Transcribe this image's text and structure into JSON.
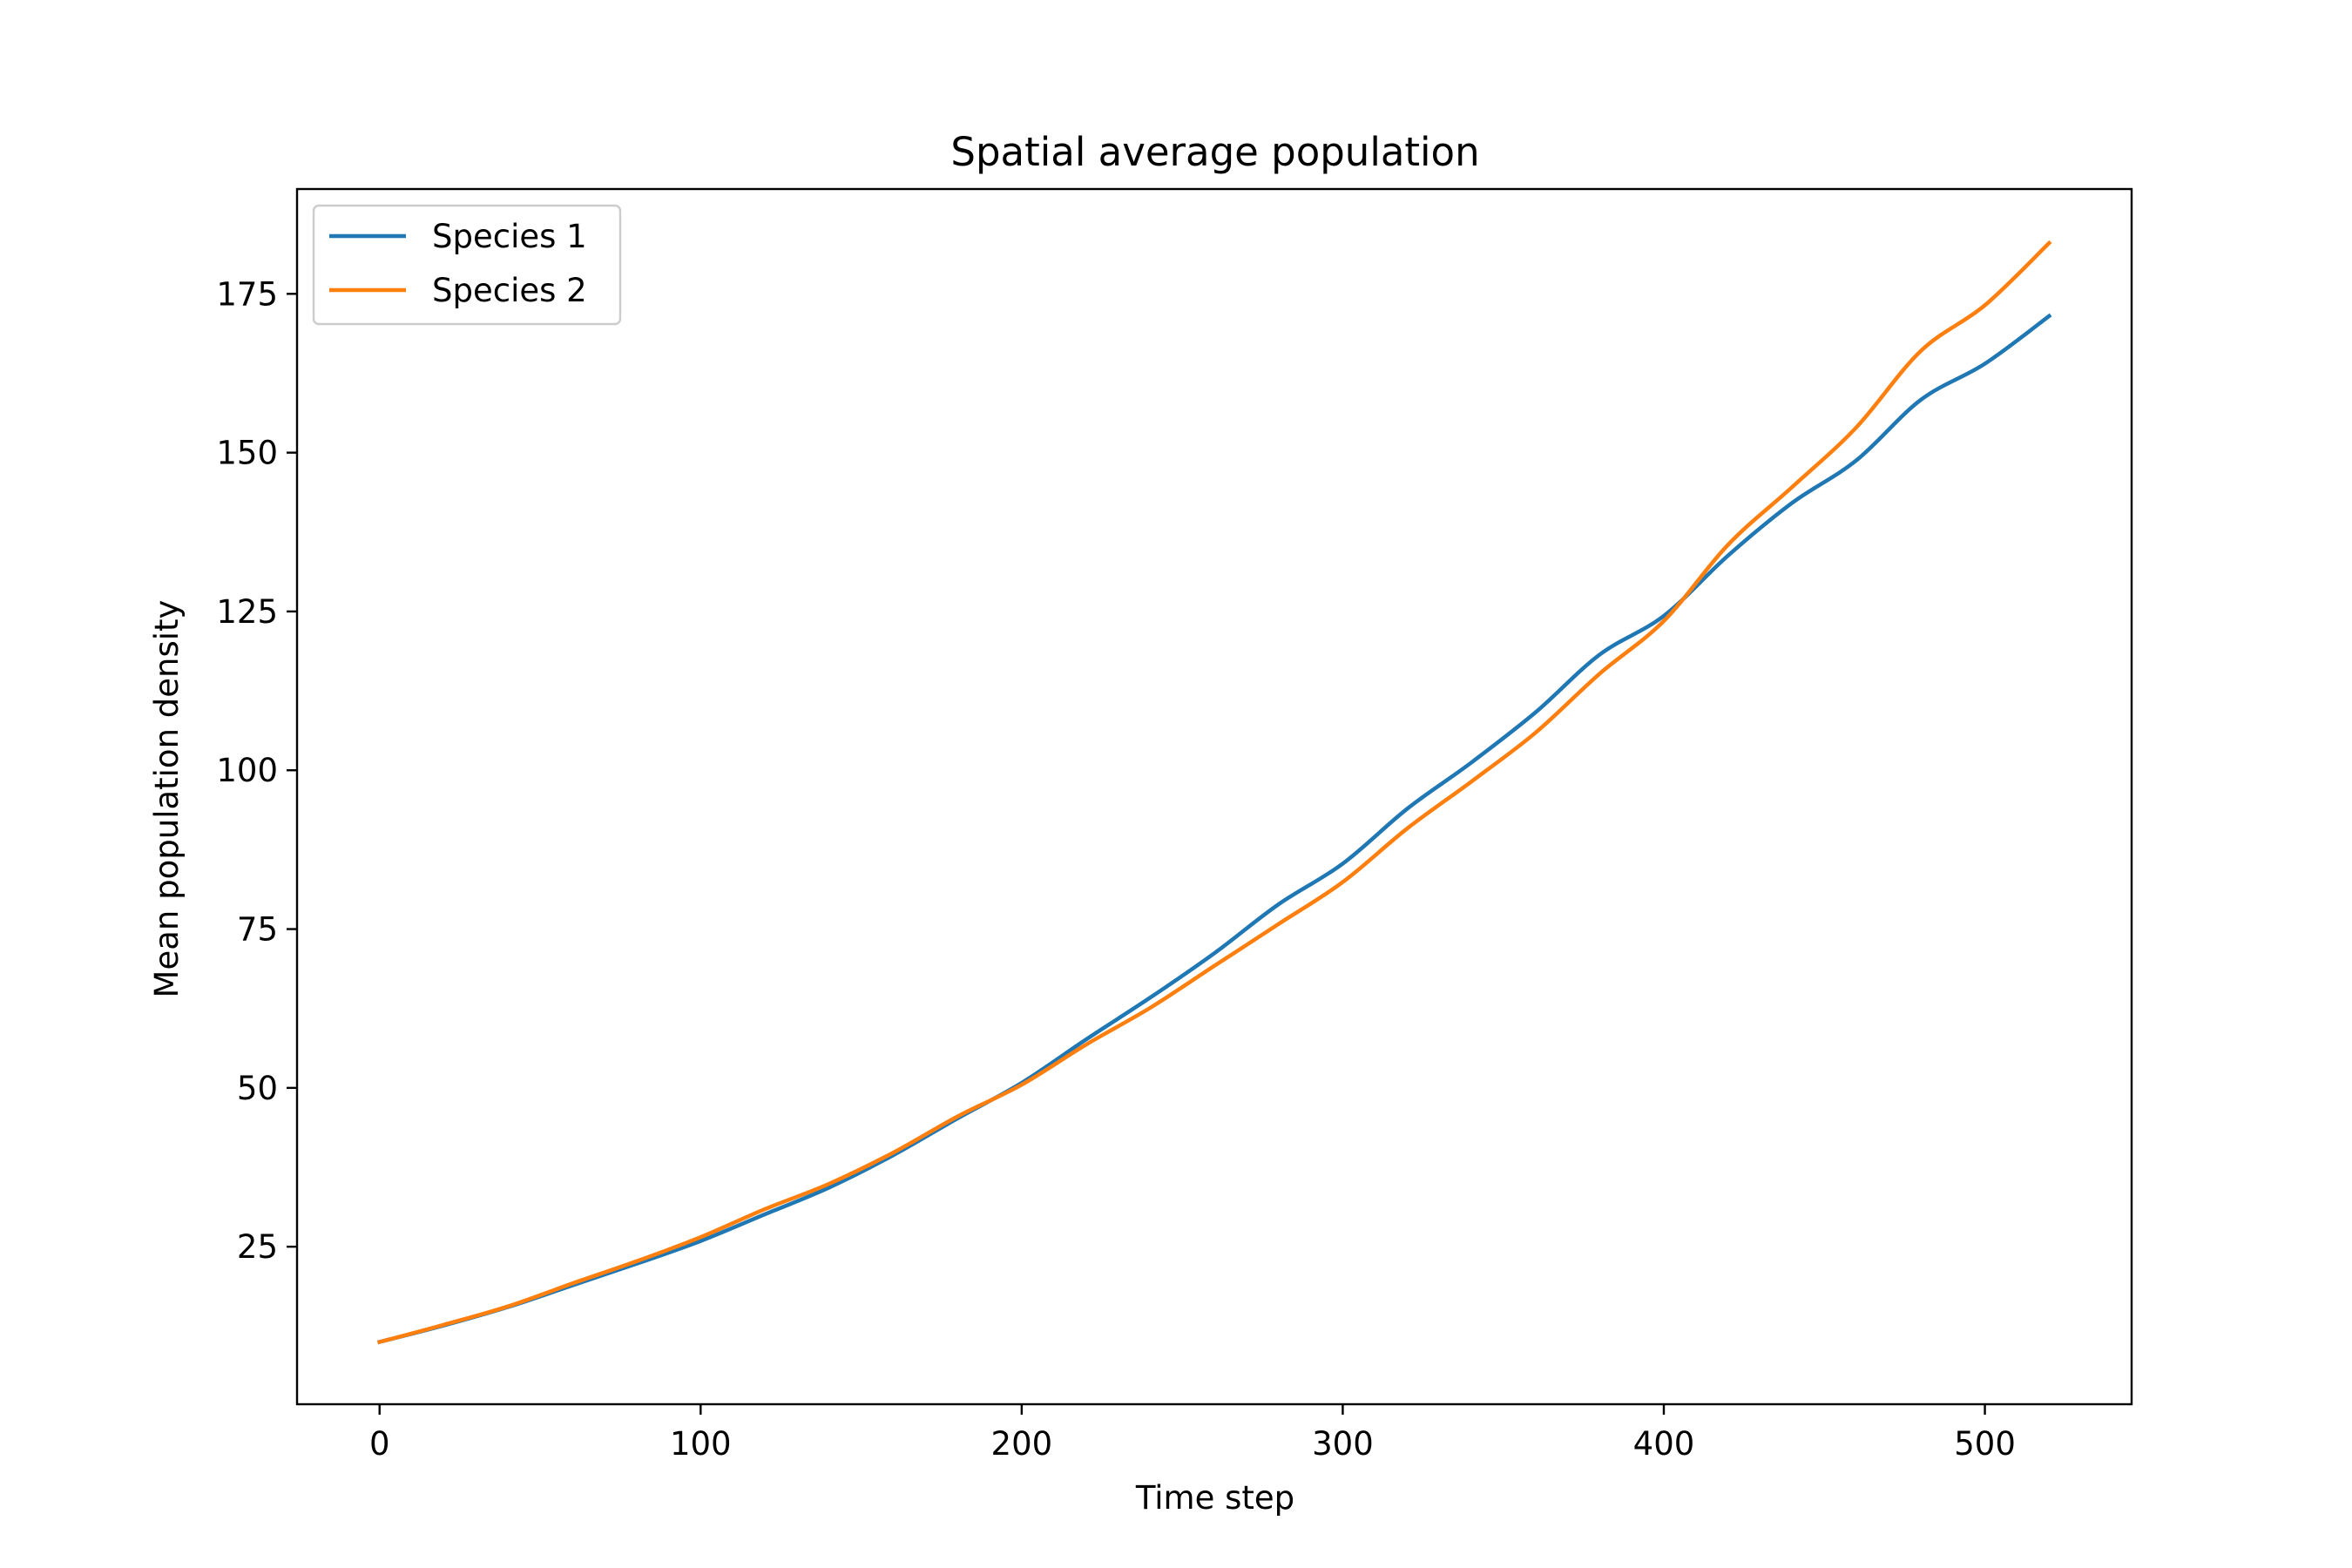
{
  "chart_data": {
    "type": "line",
    "title": "Spatial average population",
    "xlabel": "Time step",
    "ylabel": "Mean population density",
    "xlim": [
      -25.7,
      545.7
    ],
    "ylim": [
      0.2,
      191.5
    ],
    "xticks": [
      0,
      100,
      200,
      300,
      400,
      500
    ],
    "yticks": [
      25,
      50,
      75,
      100,
      125,
      150,
      175
    ],
    "xtick_labels": [
      "0",
      "100",
      "200",
      "300",
      "400",
      "500"
    ],
    "ytick_labels": [
      "25",
      "50",
      "75",
      "100",
      "125",
      "150",
      "175"
    ],
    "grid": false,
    "legend_position": "upper left",
    "series": [
      {
        "name": "Species 1",
        "color": "#1f77b4",
        "x": [
          0,
          20,
          40,
          60,
          80,
          100,
          120,
          140,
          160,
          180,
          200,
          220,
          240,
          260,
          280,
          300,
          320,
          340,
          360,
          380,
          400,
          420,
          440,
          460,
          480,
          500,
          520
        ],
        "y": [
          10,
          12.6,
          15.5,
          18.9,
          22.3,
          25.9,
          30.1,
          34.3,
          39.4,
          45.2,
          50.8,
          57.6,
          64.2,
          71.2,
          78.9,
          85.3,
          93.9,
          101.2,
          109.1,
          118.2,
          124.3,
          133.8,
          142.1,
          148.8,
          158.3,
          164.0,
          171.5
        ]
      },
      {
        "name": "Species 2",
        "color": "#ff7f0e",
        "x": [
          0,
          20,
          40,
          60,
          80,
          100,
          120,
          140,
          160,
          180,
          200,
          220,
          240,
          260,
          280,
          300,
          320,
          340,
          360,
          380,
          400,
          420,
          440,
          460,
          480,
          500,
          520
        ],
        "y": [
          10,
          12.7,
          15.6,
          19.2,
          22.7,
          26.5,
          30.9,
          34.9,
          39.8,
          45.5,
          50.5,
          56.8,
          62.6,
          69.2,
          75.8,
          82.4,
          90.8,
          98.2,
          105.9,
          115.2,
          123.5,
          135.5,
          144.6,
          154.0,
          166.0,
          173.2,
          183.0
        ]
      }
    ]
  }
}
